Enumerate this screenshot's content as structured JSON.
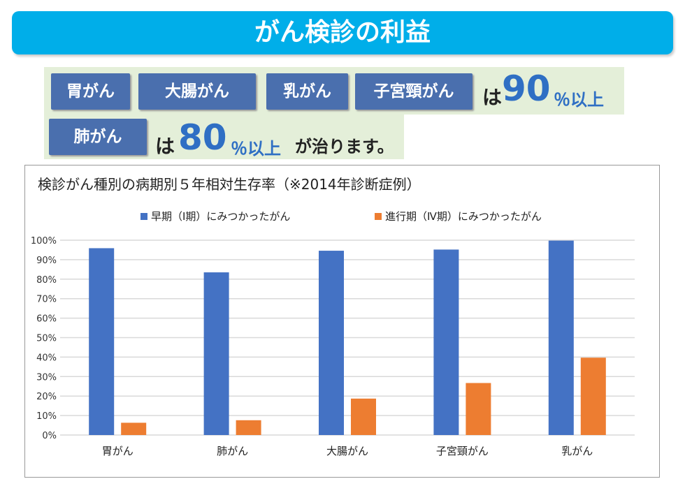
{
  "title": "がん検診の利益",
  "summary": {
    "row1_badges": [
      "胃がん",
      "大腸がん",
      "乳がん",
      "子宮頸がん"
    ],
    "row1_wa": "は",
    "row1_number": "90",
    "row1_suffix": "％以上",
    "row2_badges": [
      "肺がん"
    ],
    "row2_wa": "は",
    "row2_number": "80",
    "row2_suffix": "％以上",
    "row2_end": "が治ります。"
  },
  "chart_data": {
    "type": "bar",
    "title": "検診がん種別の病期別５年相対生存率（※2014年診断症例）",
    "categories": [
      "胃がん",
      "肺がん",
      "大腸がん",
      "子宮頸がん",
      "乳がん"
    ],
    "series": [
      {
        "name": "早期（Ⅰ期）にみつかったがん",
        "color": "#4472c4",
        "values": [
          95.9,
          83.5,
          94.6,
          95.2,
          99.8
        ]
      },
      {
        "name": "進行期（Ⅳ期）にみつかったがん",
        "color": "#ed7d31",
        "values": [
          6.3,
          7.6,
          18.7,
          26.7,
          39.7
        ]
      }
    ],
    "yticks": [
      "0%",
      "10%",
      "20%",
      "30%",
      "40%",
      "50%",
      "60%",
      "70%",
      "80%",
      "90%",
      "100%"
    ],
    "ylim": [
      0,
      100
    ],
    "grid": true,
    "legend": "top"
  }
}
